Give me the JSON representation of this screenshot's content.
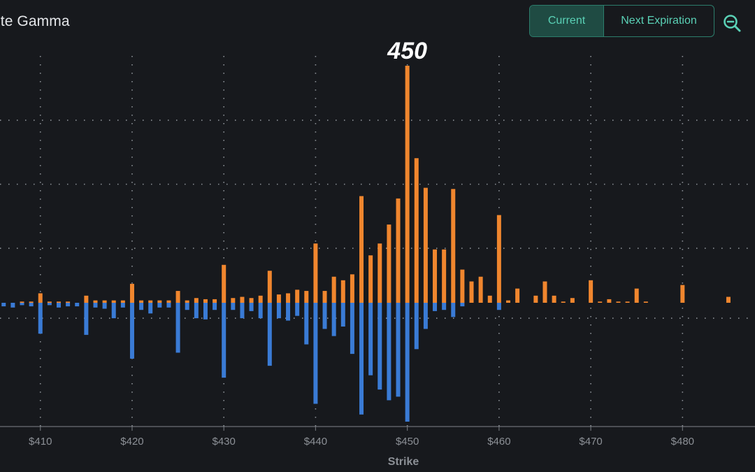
{
  "header": {
    "title": "ute Gamma",
    "toggle": {
      "current_label": "Current",
      "next_label": "Next Expiration"
    },
    "zoom_icon": "zoom-out-icon"
  },
  "colors": {
    "positive": "#f0862e",
    "negative": "#3a7bd5",
    "accent": "#5ad1b6",
    "background": "#17191d"
  },
  "chart_data": {
    "type": "bar",
    "xlabel": "Strike",
    "ylabel": "",
    "annotation": {
      "text": "450",
      "x": 450
    },
    "xlim": [
      405.6,
      487.9
    ],
    "ylim": [
      -1.0,
      2.0
    ],
    "x_ticks": [
      410,
      420,
      430,
      440,
      450,
      460,
      470,
      480
    ],
    "x_tick_labels": [
      "$410",
      "$420",
      "$430",
      "$440",
      "$450",
      "$460",
      "$470",
      "$480"
    ],
    "grid": true,
    "series": [
      {
        "x": [
          405,
          406,
          407,
          408,
          409,
          410,
          411,
          412,
          413,
          414,
          415,
          416,
          417,
          418,
          419,
          420,
          421,
          422,
          423,
          424,
          425,
          426,
          427,
          428,
          429,
          430,
          431,
          432,
          433,
          434,
          435,
          436,
          437,
          438,
          439,
          440,
          441,
          442,
          443,
          444,
          445,
          446,
          447,
          448,
          449,
          450,
          451,
          452,
          453,
          454,
          455,
          456,
          457,
          458,
          459,
          460,
          461,
          462,
          463,
          464,
          465,
          466,
          467,
          468,
          469,
          470,
          471,
          472,
          473,
          474,
          475,
          476,
          477,
          478,
          479,
          480,
          481,
          482,
          483,
          484,
          485,
          486,
          487
        ],
        "values": [
          0.0,
          0.0,
          0.0,
          0.01,
          0.01,
          0.08,
          0.01,
          0.01,
          0.01,
          0.0,
          0.06,
          0.02,
          0.02,
          0.02,
          0.02,
          0.16,
          0.02,
          0.02,
          0.02,
          0.02,
          0.1,
          0.02,
          0.04,
          0.03,
          0.03,
          0.32,
          0.04,
          0.05,
          0.04,
          0.06,
          0.27,
          0.07,
          0.08,
          0.11,
          0.1,
          0.5,
          0.1,
          0.22,
          0.19,
          0.24,
          0.9,
          0.4,
          0.5,
          0.66,
          0.88,
          2.0,
          1.22,
          0.97,
          0.45,
          0.45,
          0.96,
          0.28,
          0.18,
          0.22,
          0.06,
          0.74,
          0.02,
          0.12,
          0.0,
          0.06,
          0.18,
          0.06,
          0.01,
          0.04,
          0.0,
          0.19,
          0.01,
          0.03,
          0.01,
          0.01,
          0.12,
          0.01,
          0.0,
          0.0,
          0.0,
          0.15,
          0.0,
          0.0,
          0.0,
          0.0,
          0.05,
          0.0,
          0.0
        ]
      },
      {
        "x": [
          405,
          406,
          407,
          408,
          409,
          410,
          411,
          412,
          413,
          414,
          415,
          416,
          417,
          418,
          419,
          420,
          421,
          422,
          423,
          424,
          425,
          426,
          427,
          428,
          429,
          430,
          431,
          432,
          433,
          434,
          435,
          436,
          437,
          438,
          439,
          440,
          441,
          442,
          443,
          444,
          445,
          446,
          447,
          448,
          449,
          450,
          451,
          452,
          453,
          454,
          455,
          456,
          457,
          458,
          459,
          460,
          461,
          462,
          463,
          464,
          465,
          466,
          467,
          468,
          469,
          470,
          471,
          472,
          473,
          474,
          475,
          476,
          477,
          478,
          479,
          480,
          481,
          482,
          483,
          484,
          485,
          486,
          487
        ],
        "values": [
          -0.02,
          -0.03,
          -0.04,
          -0.02,
          -0.03,
          -0.26,
          -0.02,
          -0.04,
          -0.03,
          -0.03,
          -0.27,
          -0.04,
          -0.05,
          -0.13,
          -0.04,
          -0.47,
          -0.06,
          -0.09,
          -0.04,
          -0.04,
          -0.42,
          -0.06,
          -0.13,
          -0.14,
          -0.06,
          -0.63,
          -0.06,
          -0.13,
          -0.07,
          -0.13,
          -0.53,
          -0.13,
          -0.15,
          -0.11,
          -0.35,
          -0.85,
          -0.22,
          -0.28,
          -0.2,
          -0.43,
          -0.94,
          -0.61,
          -0.73,
          -0.82,
          -0.79,
          -1.0,
          -0.39,
          -0.22,
          -0.07,
          -0.06,
          -0.12,
          -0.03,
          0.0,
          0.0,
          0.0,
          -0.06,
          0.0,
          0.0,
          0.0,
          0.0,
          0.0,
          0.0,
          0.0,
          0.0,
          0.0,
          0.0,
          0.0,
          0.0,
          0.0,
          0.0,
          0.0,
          0.0,
          0.0,
          0.0,
          0.0,
          0.0,
          0.0,
          0.0,
          0.0,
          0.0,
          0.0,
          0.0,
          0.0
        ]
      }
    ]
  }
}
